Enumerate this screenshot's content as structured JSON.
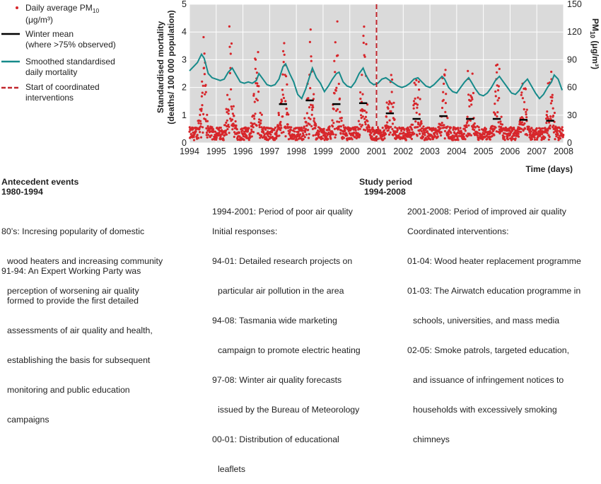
{
  "chart_data": {
    "type": "scatter",
    "title": "",
    "xlabel": "Time (days)",
    "ylabel_left_line1": "Standardised mortality",
    "ylabel_left_line2": "(deaths/ 100 000 population)",
    "ylabel_right": "PM",
    "ylabel_right_sub": "10",
    "ylabel_right_unit": " (μg/m³)",
    "xlim": [
      1994,
      2008
    ],
    "ylim_left": [
      0,
      5
    ],
    "ylim_right": [
      0,
      150
    ],
    "x_ticks": [
      "1994",
      "1995",
      "1996",
      "1997",
      "1998",
      "1999",
      "2000",
      "2001",
      "2002",
      "2003",
      "2004",
      "2005",
      "2006",
      "2007",
      "2008"
    ],
    "y_left_ticks": [
      "0",
      "1",
      "2",
      "3",
      "4",
      "5"
    ],
    "y_right_ticks": [
      "0",
      "30",
      "60",
      "90",
      "120",
      "150"
    ],
    "grid": true,
    "legend_position": "top-left outside",
    "legend": [
      {
        "label_lines": [
          "Daily average PM",
          "(μg/m³)"
        ],
        "sub": "10",
        "marker": "dot",
        "color": "#d7262b"
      },
      {
        "label_lines": [
          "Winter mean",
          "(where >75% observed)"
        ],
        "marker": "line",
        "color": "#000000"
      },
      {
        "label_lines": [
          "Smoothed standardised",
          "daily mortality"
        ],
        "marker": "line",
        "color": "#168a8a"
      },
      {
        "label_lines": [
          "Start of coordinated",
          "interventions"
        ],
        "marker": "dashed",
        "color": "#c1272d"
      }
    ],
    "intervention_start_x": 2001.0,
    "winter_means": [
      {
        "year": 1997,
        "x": [
          1997.35,
          1997.65
        ],
        "pm10": 42
      },
      {
        "year": 1998,
        "x": [
          1998.35,
          1998.65
        ],
        "pm10": 46
      },
      {
        "year": 1999,
        "x": [
          1999.35,
          1999.65
        ],
        "pm10": 42
      },
      {
        "year": 2000,
        "x": [
          2000.35,
          2000.65
        ],
        "pm10": 43
      },
      {
        "year": 2001,
        "x": [
          2001.35,
          2001.65
        ],
        "pm10": 32
      },
      {
        "year": 2002,
        "x": [
          2002.35,
          2002.65
        ],
        "pm10": 26
      },
      {
        "year": 2003,
        "x": [
          2003.35,
          2003.65
        ],
        "pm10": 29
      },
      {
        "year": 2004,
        "x": [
          2004.35,
          2004.65
        ],
        "pm10": 26
      },
      {
        "year": 2005,
        "x": [
          2005.35,
          2005.65
        ],
        "pm10": 26
      },
      {
        "year": 2006,
        "x": [
          2006.35,
          2006.65
        ],
        "pm10": 25
      },
      {
        "year": 2007,
        "x": [
          2007.35,
          2007.65
        ],
        "pm10": 24
      }
    ],
    "smoothed_mortality": {
      "x": [
        1994.0,
        1994.15,
        1994.3,
        1994.45,
        1994.55,
        1994.7,
        1994.85,
        1995.0,
        1995.15,
        1995.3,
        1995.45,
        1995.6,
        1995.75,
        1995.9,
        1996.05,
        1996.2,
        1996.35,
        1996.5,
        1996.6,
        1996.75,
        1996.9,
        1997.05,
        1997.2,
        1997.35,
        1997.5,
        1997.6,
        1997.75,
        1997.9,
        1998.05,
        1998.2,
        1998.35,
        1998.5,
        1998.6,
        1998.75,
        1998.9,
        1999.05,
        1999.2,
        1999.35,
        1999.5,
        1999.6,
        1999.75,
        1999.9,
        2000.05,
        2000.2,
        2000.35,
        2000.5,
        2000.6,
        2000.75,
        2000.9,
        2001.05,
        2001.2,
        2001.35,
        2001.5,
        2001.65,
        2001.8,
        2001.95,
        2002.1,
        2002.25,
        2002.4,
        2002.55,
        2002.7,
        2002.85,
        2003.0,
        2003.15,
        2003.3,
        2003.45,
        2003.55,
        2003.7,
        2003.85,
        2004.0,
        2004.15,
        2004.3,
        2004.45,
        2004.55,
        2004.7,
        2004.85,
        2005.0,
        2005.15,
        2005.3,
        2005.45,
        2005.6,
        2005.75,
        2005.9,
        2006.05,
        2006.2,
        2006.35,
        2006.5,
        2006.65,
        2006.8,
        2006.95,
        2007.1,
        2007.25,
        2007.4,
        2007.55,
        2007.65,
        2007.8,
        2007.95
      ],
      "y": [
        2.6,
        2.75,
        2.9,
        3.2,
        3.05,
        2.5,
        2.35,
        2.3,
        2.25,
        2.3,
        2.55,
        2.7,
        2.45,
        2.2,
        2.15,
        2.2,
        2.15,
        2.25,
        2.5,
        2.3,
        2.1,
        2.05,
        2.1,
        2.3,
        2.75,
        2.85,
        2.5,
        2.2,
        1.75,
        1.6,
        1.95,
        2.4,
        2.7,
        2.35,
        2.15,
        1.85,
        2.05,
        2.3,
        2.5,
        2.55,
        2.2,
        2.05,
        2.0,
        2.2,
        2.5,
        2.7,
        2.45,
        2.2,
        2.1,
        2.15,
        2.3,
        2.35,
        2.25,
        2.15,
        2.05,
        2.0,
        2.05,
        2.15,
        2.3,
        2.35,
        2.2,
        2.05,
        2.0,
        2.1,
        2.25,
        2.4,
        2.3,
        2.0,
        1.85,
        1.8,
        2.0,
        2.2,
        2.35,
        2.2,
        1.95,
        1.75,
        1.7,
        1.8,
        2.0,
        2.25,
        2.4,
        2.2,
        2.0,
        1.8,
        1.75,
        1.9,
        2.15,
        2.3,
        2.05,
        1.8,
        1.6,
        1.75,
        2.0,
        2.2,
        2.45,
        2.3,
        1.9
      ]
    },
    "daily_pm10": {
      "note": "Red points: one per day, 1994-2008; dense winter (mid-year) peaks up to ~125, baseline 2-25; peaks reduce after 2001.",
      "winter_peak_by_year": [
        {
          "year": 1994,
          "peak": 95
        },
        {
          "year": 1995,
          "peak": 105
        },
        {
          "year": 1996,
          "peak": 100
        },
        {
          "year": 1997,
          "peak": 122
        },
        {
          "year": 1998,
          "peak": 125
        },
        {
          "year": 1999,
          "peak": 110
        },
        {
          "year": 2000,
          "peak": 108
        },
        {
          "year": 2001,
          "peak": 85
        },
        {
          "year": 2002,
          "peak": 78
        },
        {
          "year": 2003,
          "peak": 82
        },
        {
          "year": 2004,
          "peak": 80
        },
        {
          "year": 2005,
          "peak": 88
        },
        {
          "year": 2006,
          "peak": 72
        },
        {
          "year": 2007,
          "peak": 85
        }
      ]
    }
  },
  "antecedent": {
    "title": "Antecedent events",
    "period": "1980-1994",
    "items": [
      {
        "lines": [
          "80’s: Incresing popularity of domestic",
          "wood heaters and increasing community",
          "perception of worsening air quality"
        ]
      },
      {
        "lines": [
          "91-94: An Expert Working Party was",
          "formed to provide the first detailed",
          "assessments of air quality and health,",
          "establishing the basis for subsequent",
          "monitoring and public education",
          "campaigns"
        ]
      }
    ]
  },
  "study": {
    "title": "Study period",
    "period": "1994-2008",
    "poor": {
      "heading": "1994-2001: Period of poor air quality",
      "subheading": "Initial responses:",
      "items": [
        {
          "lines": [
            "94-01: Detailed research projects on",
            "particular air pollution in the area"
          ]
        },
        {
          "lines": [
            "94-08: Tasmania wide marketing",
            "campaign to promote electric heating"
          ]
        },
        {
          "lines": [
            "97-08: Winter air quality forecasts",
            "issued by the Bureau of Meteorology"
          ]
        },
        {
          "lines": [
            "00-01: Distribution of educational",
            "leaflets"
          ]
        }
      ]
    },
    "improved": {
      "heading": "2001-2008: Period of improved air quality",
      "subheading": "Coordinated interventions:",
      "items": [
        {
          "lines": [
            "01-04: Wood heater replacement programme"
          ]
        },
        {
          "lines": [
            "01-03: The Airwatch education programme in",
            "schools, universities, and mass media"
          ]
        },
        {
          "lines": [
            "02-05: Smoke patrols, targeted education,",
            "and issuance of infringement notices to",
            "households with excessively smoking",
            "chimneys"
          ]
        }
      ]
    }
  },
  "colors": {
    "plot_bg": "#dadada",
    "pm_dot": "#d7262b",
    "winter_mean": "#000000",
    "mortality_line": "#168a8a",
    "intervention_line": "#c1272d"
  }
}
